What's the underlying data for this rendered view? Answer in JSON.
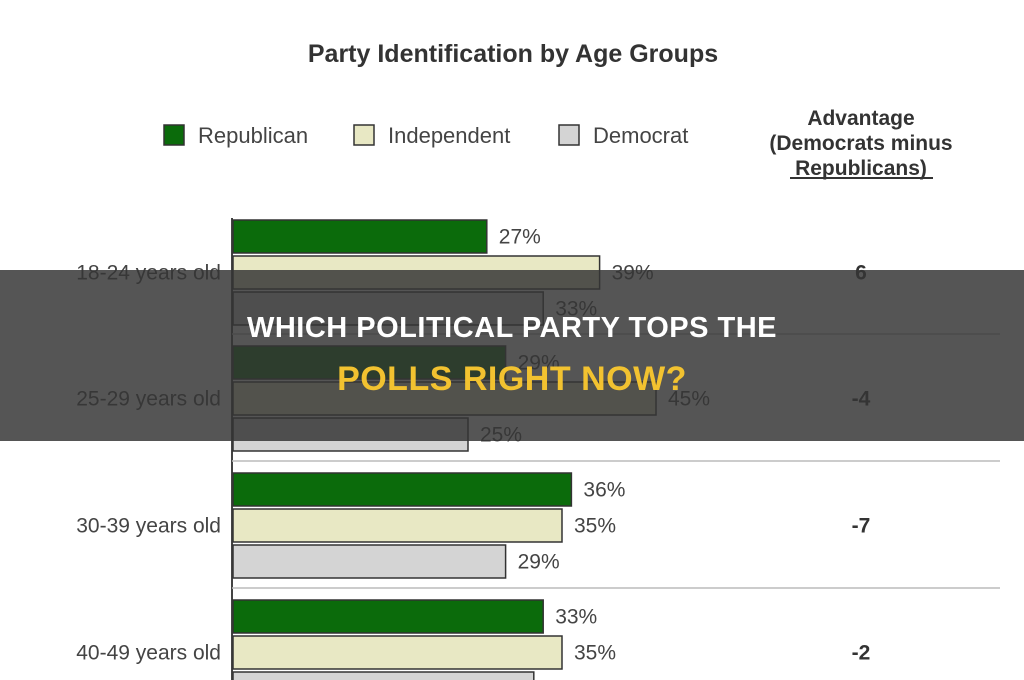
{
  "chart_data": {
    "type": "bar",
    "orientation": "horizontal",
    "title": "Party Identification by Age Groups",
    "categories": [
      "18-24 years old",
      "25-29 years old",
      "30-39 years old",
      "40-49 years old"
    ],
    "series": [
      {
        "name": "Republican",
        "color": "#0b6b0b",
        "values": [
          27,
          29,
          36,
          33
        ]
      },
      {
        "name": "Independent",
        "color": "#e8e8c4",
        "values": [
          39,
          45,
          35,
          35
        ]
      },
      {
        "name": "Democrat",
        "color": "#d4d4d4",
        "values": [
          33,
          25,
          29,
          32
        ]
      }
    ],
    "value_labels": [
      [
        "27%",
        "39%",
        "33%"
      ],
      [
        "29%",
        "45%",
        "25%"
      ],
      [
        "36%",
        "35%",
        "29%"
      ],
      [
        "33%",
        "35%",
        ""
      ]
    ],
    "advantage_header": [
      "Advantage",
      "(Democrats minus",
      "Republicans)"
    ],
    "advantage_values": [
      "6",
      "-4",
      "-7",
      "-2"
    ],
    "legend_position": "top",
    "grid": false,
    "xlim": [
      0,
      100
    ]
  },
  "overlay": {
    "line1": "WHICH POLITICAL PARTY TOPS THE",
    "line2": "POLLS RIGHT NOW?",
    "line2_color": "#f2c230"
  }
}
